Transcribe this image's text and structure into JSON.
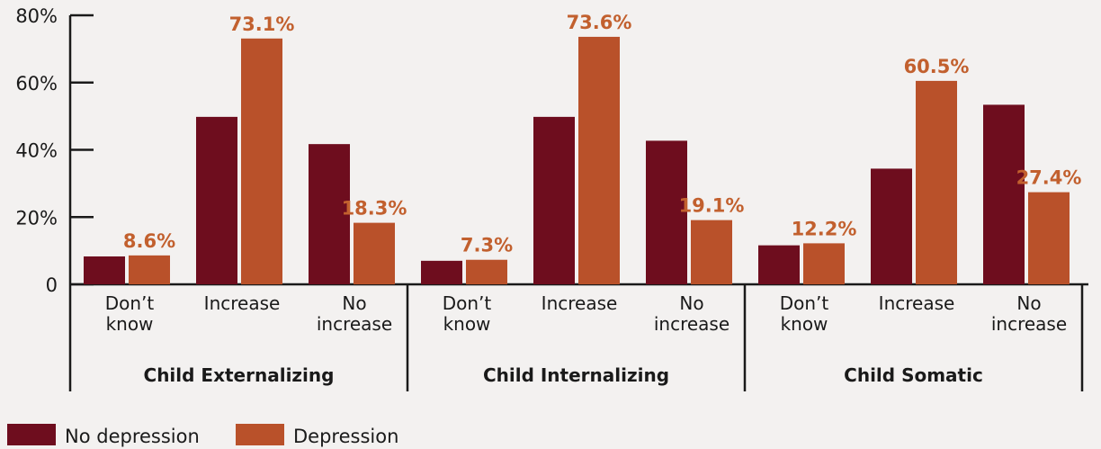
{
  "chart_data": {
    "type": "bar",
    "ylim": [
      0,
      80
    ],
    "y_ticks": [
      {
        "value": 0,
        "label": "0"
      },
      {
        "value": 20,
        "label": "20%"
      },
      {
        "value": 40,
        "label": "40%"
      },
      {
        "value": 60,
        "label": "60%"
      },
      {
        "value": 80,
        "label": "80%"
      }
    ],
    "groups": [
      {
        "name": "Child Externalizing",
        "categories": [
          [
            "Don’t",
            "know"
          ],
          [
            "Increase"
          ],
          [
            "No",
            "increase"
          ]
        ]
      },
      {
        "name": "Child Internalizing",
        "categories": [
          [
            "Don’t",
            "know"
          ],
          [
            "Increase"
          ],
          [
            "No",
            "increase"
          ]
        ]
      },
      {
        "name": "Child Somatic",
        "categories": [
          [
            "Don’t",
            "know"
          ],
          [
            "Increase"
          ],
          [
            "No",
            "increase"
          ]
        ]
      }
    ],
    "series": [
      {
        "name": "No depression",
        "color": "#6e0d1e",
        "values": [
          8.3,
          49.8,
          41.7,
          7.0,
          49.8,
          42.7,
          11.6,
          34.4,
          53.4
        ],
        "labels": []
      },
      {
        "name": "Depression",
        "color": "#b9512a",
        "values": [
          8.6,
          73.1,
          18.3,
          7.3,
          73.6,
          19.1,
          12.2,
          60.5,
          27.4
        ],
        "labels": [
          "8.6%",
          "73.1%",
          "18.3%",
          "7.3%",
          "73.6%",
          "19.1%",
          "12.2%",
          "60.5%",
          "27.4%"
        ]
      }
    ],
    "label_color": "#c2602e",
    "legend_position": "bottom-left",
    "grid": false
  }
}
